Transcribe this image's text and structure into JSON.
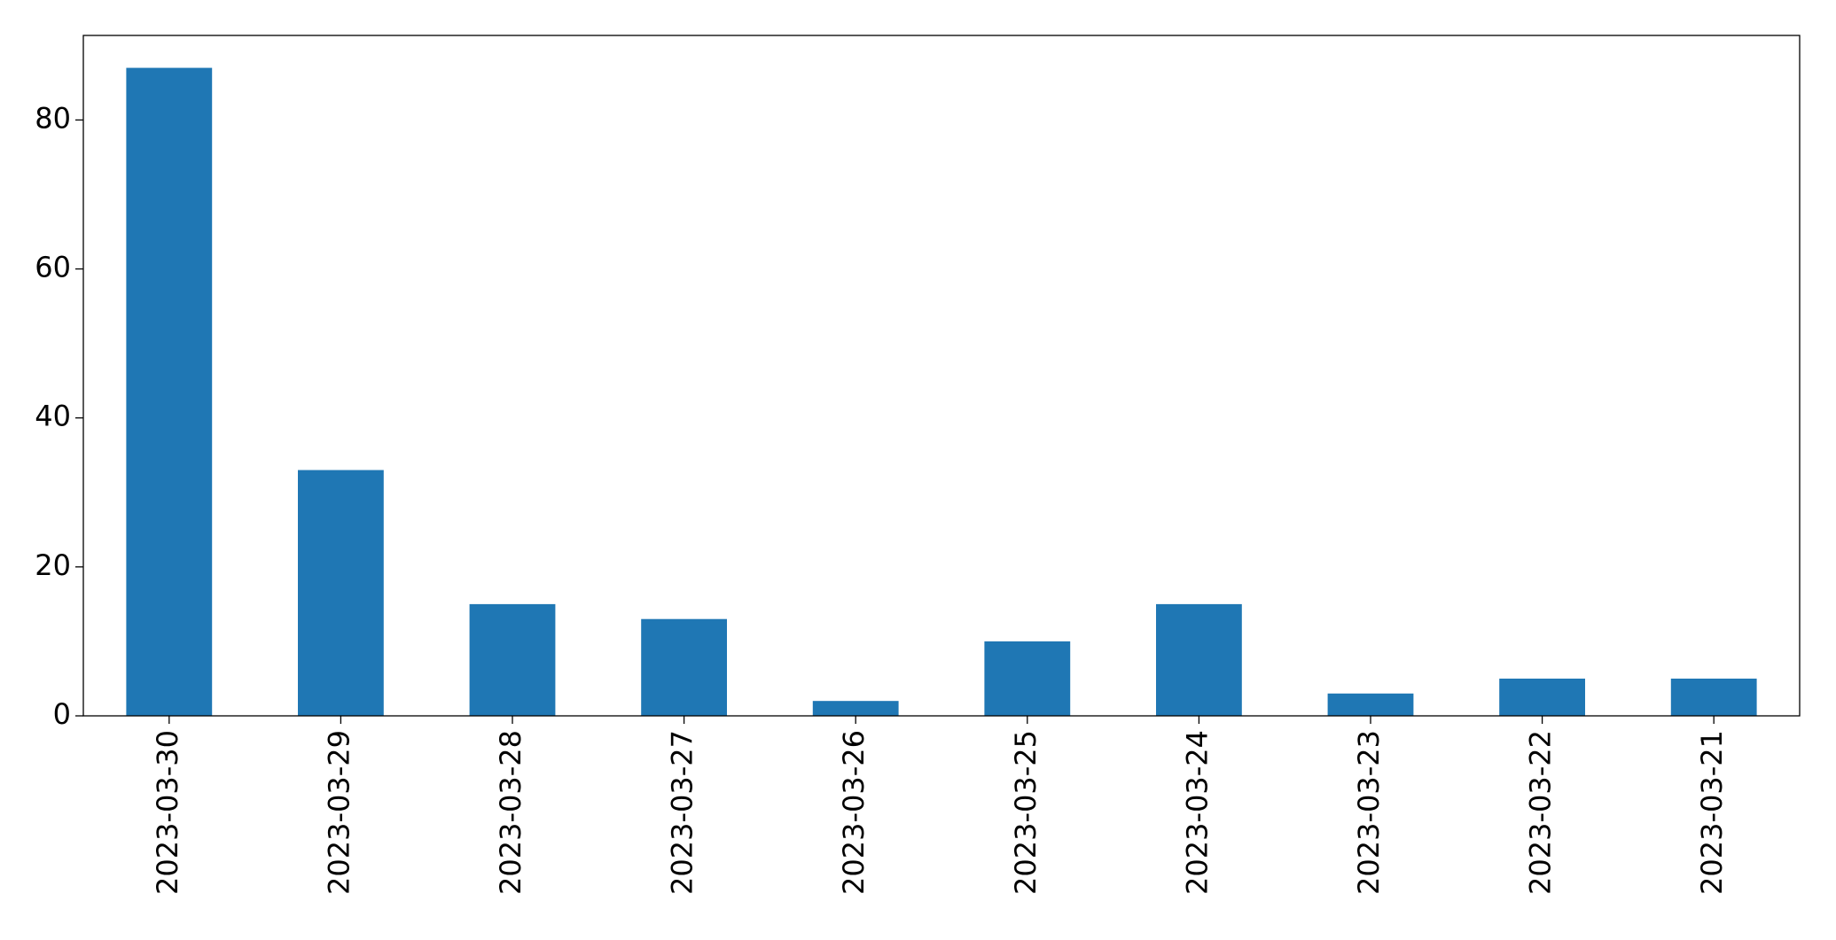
{
  "chart_data": {
    "type": "bar",
    "categories": [
      "2023-03-30",
      "2023-03-29",
      "2023-03-28",
      "2023-03-27",
      "2023-03-26",
      "2023-03-25",
      "2023-03-24",
      "2023-03-23",
      "2023-03-22",
      "2023-03-21"
    ],
    "values": [
      87,
      33,
      15,
      13,
      2,
      10,
      15,
      3,
      5,
      5
    ],
    "color": "#1f77b4",
    "ylim": [
      0,
      91.35
    ],
    "yticks": [
      0,
      20,
      40,
      60,
      80
    ],
    "grid": false
  }
}
